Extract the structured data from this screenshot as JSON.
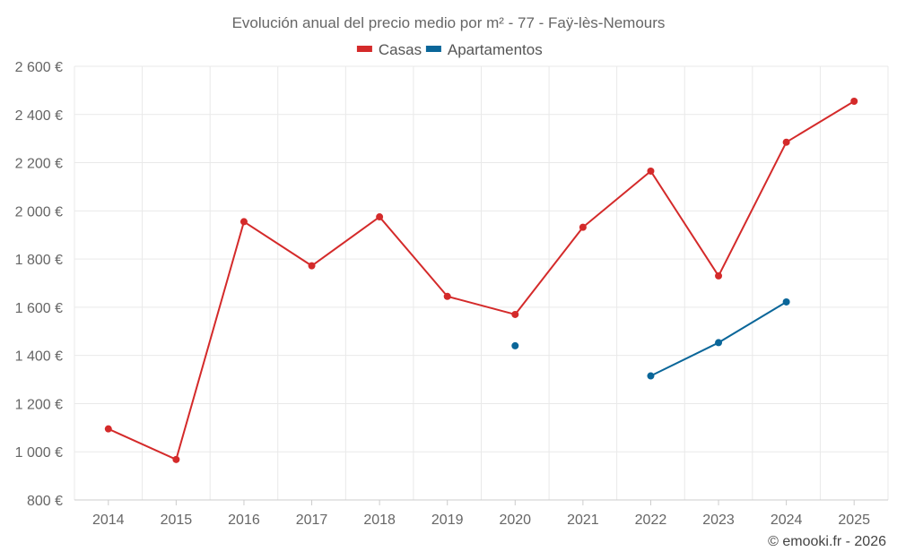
{
  "chart_data": {
    "type": "line",
    "title": "Evolución anual del precio medio por m² - 77 - Faÿ-lès-Nemours",
    "categories": [
      "2014",
      "2015",
      "2016",
      "2017",
      "2018",
      "2019",
      "2020",
      "2021",
      "2022",
      "2023",
      "2024",
      "2025"
    ],
    "series": [
      {
        "name": "Casas",
        "color": "#d42a2a",
        "values": [
          1095,
          968,
          1955,
          1772,
          1975,
          1645,
          1570,
          1932,
          2165,
          1730,
          2285,
          2455
        ]
      },
      {
        "name": "Apartamentos",
        "color": "#0a6699",
        "values": [
          null,
          null,
          null,
          null,
          null,
          null,
          1440,
          null,
          1315,
          1453,
          1622,
          null
        ]
      }
    ],
    "ylim": [
      800,
      2600
    ],
    "yticks": [
      800,
      1000,
      1200,
      1400,
      1600,
      1800,
      2000,
      2200,
      2400,
      2600
    ],
    "ytick_labels": [
      "800 €",
      "1 000 €",
      "1 200 €",
      "1 400 €",
      "1 600 €",
      "1 800 €",
      "2 000 €",
      "2 200 €",
      "2 400 €",
      "2 600 €"
    ],
    "xlabel": "",
    "ylabel": "",
    "grid": true,
    "legend_position": "top-center"
  },
  "credit": "© emooki.fr - 2026"
}
